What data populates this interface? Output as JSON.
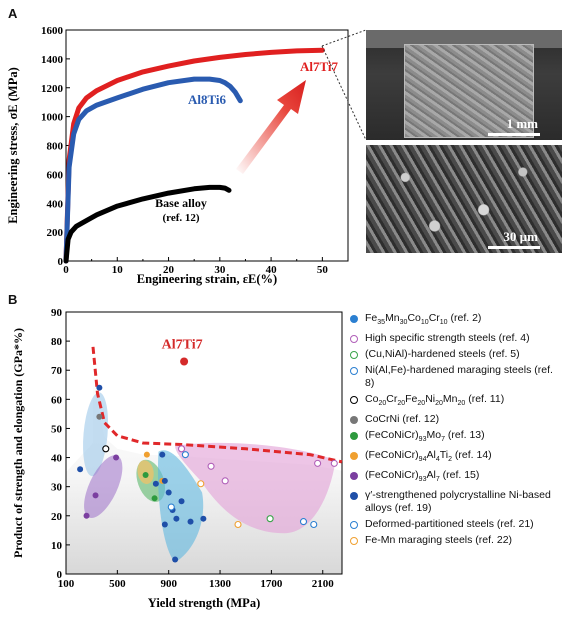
{
  "panelA": {
    "letter": "A",
    "micro_scale_top": "1 mm",
    "micro_scale_bottom": "30 µm"
  },
  "panelB": {
    "letter": "B"
  },
  "chart_data": [
    {
      "type": "line",
      "xlabel": "Engineering strain, εE(%)",
      "ylabel": "Engineering stress, σE (MPa)",
      "xlim": [
        0,
        55
      ],
      "ylim": [
        0,
        1600
      ],
      "xticks": [
        0,
        10,
        20,
        30,
        40,
        50
      ],
      "yticks": [
        0,
        200,
        400,
        600,
        800,
        1000,
        1200,
        1400,
        1600
      ],
      "series": [
        {
          "name": "Al7Ti7",
          "color": "#e02020",
          "x": [
            0,
            0.6,
            1.5,
            2.5,
            4,
            6,
            10,
            15,
            20,
            25,
            30,
            35,
            40,
            45,
            50
          ],
          "y": [
            0,
            700,
            950,
            1060,
            1130,
            1180,
            1250,
            1310,
            1350,
            1385,
            1410,
            1430,
            1445,
            1455,
            1460
          ]
        },
        {
          "name": "Al8Ti6",
          "color": "#2a5bb0",
          "x": [
            0,
            0.6,
            1.5,
            2.5,
            4,
            6,
            10,
            15,
            20,
            25,
            28,
            30,
            31,
            32,
            33,
            34
          ],
          "y": [
            0,
            650,
            880,
            980,
            1040,
            1080,
            1130,
            1190,
            1235,
            1260,
            1260,
            1250,
            1235,
            1210,
            1170,
            1110
          ]
        },
        {
          "name": "Base alloy",
          "name_ref": "(ref. 12)",
          "color": "#000000",
          "x": [
            0,
            0.4,
            1,
            2,
            4,
            6,
            10,
            15,
            20,
            25,
            28,
            30,
            31,
            31.8
          ],
          "y": [
            0,
            150,
            200,
            240,
            280,
            320,
            380,
            430,
            470,
            500,
            510,
            510,
            505,
            490
          ]
        }
      ]
    },
    {
      "type": "scatter",
      "xlabel": "Yield strength (MPa)",
      "ylabel": "Product of strength and elongation (GPa*%)",
      "xlim": [
        100,
        2250
      ],
      "ylim": [
        0,
        90
      ],
      "xticks": [
        100,
        500,
        900,
        1300,
        1700,
        2100
      ],
      "yticks": [
        0,
        10,
        20,
        30,
        40,
        50,
        60,
        70,
        80,
        90
      ],
      "highlight": {
        "label": "Al7Ti7",
        "x": 1020,
        "y": 73,
        "color": "#d42a2a"
      },
      "series": [
        {
          "name": "Fe35Mn30Co10Cr10 (ref. 2)",
          "label_parts": [
            "Fe",
            "35",
            "Mn",
            "30",
            "Co",
            "10",
            "Cr",
            "10",
            " (ref. 2)"
          ],
          "color": "#2b7fd1",
          "style": "filled",
          "points": []
        },
        {
          "name": "High specific strength steels (ref. 4)",
          "color": "#b05fb8",
          "style": "hollow",
          "points": [
            [
              1000,
              43
            ],
            [
              1230,
              37
            ],
            [
              1340,
              32
            ],
            [
              2060,
              38
            ],
            [
              2190,
              38
            ]
          ]
        },
        {
          "name": "(Cu,NiAl)-hardened steels (ref. 5)",
          "color": "#3aa34a",
          "style": "hollow",
          "points": [
            [
              1690,
              19
            ]
          ]
        },
        {
          "name": "Ni(Al,Fe)-hardened maraging steels (ref. 8)",
          "color": "#2b7fd1",
          "style": "hollow",
          "points": [
            [
              1950,
              18
            ],
            [
              2030,
              17
            ]
          ]
        },
        {
          "name": "Co20Cr20Fe20Ni20Mn20 (ref. 11)",
          "label_parts": [
            "Co",
            "20",
            "Cr",
            "20",
            "Fe",
            "20",
            "Ni",
            "20",
            "Mn",
            "20",
            " (ref. 11)"
          ],
          "color": "#000000",
          "style": "hollow",
          "points": [
            [
              410,
              43
            ]
          ]
        },
        {
          "name": "CoCrNi (ref. 12)",
          "color": "#777777",
          "style": "filled",
          "points": [
            [
              360,
              54
            ]
          ]
        },
        {
          "name": "(FeCoNiCr)93Mo7 (ref. 13)",
          "label_parts": [
            "(FeCoNiCr)",
            "93",
            "Mo",
            "7",
            " (ref. 13)"
          ],
          "color": "#2e9a3e",
          "style": "filled",
          "points": [
            [
              720,
              34
            ],
            [
              790,
              26
            ]
          ]
        },
        {
          "name": "(FeCoNiCr)94Al4Ti2 (ref. 14)",
          "label_parts": [
            "(FeCoNiCr)",
            "94",
            "Al",
            "4",
            "Ti",
            "2",
            " (ref. 14)"
          ],
          "color": "#f0a030",
          "style": "filled",
          "points": [
            [
              730,
              41
            ],
            [
              850,
              32
            ]
          ]
        },
        {
          "name": "(FeCoNiCr)93Al7 (ref. 15)",
          "label_parts": [
            "(FeCoNiCr)",
            "93",
            "Al",
            "7",
            " (ref. 15)"
          ],
          "color": "#7b3fa0",
          "style": "filled",
          "points": [
            [
              260,
              20
            ],
            [
              330,
              27
            ],
            [
              490,
              40
            ]
          ]
        },
        {
          "name": "γ′-strengthened polycrystalline Ni-based alloys (ref. 19)",
          "color": "#1f4fa8",
          "style": "filled",
          "points": [
            [
              210,
              36
            ],
            [
              360,
              64
            ],
            [
              850,
              41
            ],
            [
              870,
              32
            ],
            [
              900,
              28
            ],
            [
              930,
              22
            ],
            [
              960,
              19
            ],
            [
              1000,
              25
            ],
            [
              1070,
              18
            ],
            [
              1170,
              19
            ],
            [
              950,
              5
            ],
            [
              870,
              17
            ],
            [
              800,
              31
            ]
          ]
        },
        {
          "name": "Deformed-partitioned steels (ref. 21)",
          "color": "#2b7fd1",
          "style": "hollow",
          "points": [
            [
              920,
              23
            ],
            [
              1030,
              41
            ]
          ]
        },
        {
          "name": "Fe-Mn maraging steels (ref. 22)",
          "color": "#f0a030",
          "style": "hollow",
          "points": [
            [
              1150,
              31
            ],
            [
              1440,
              17
            ]
          ]
        }
      ]
    }
  ]
}
